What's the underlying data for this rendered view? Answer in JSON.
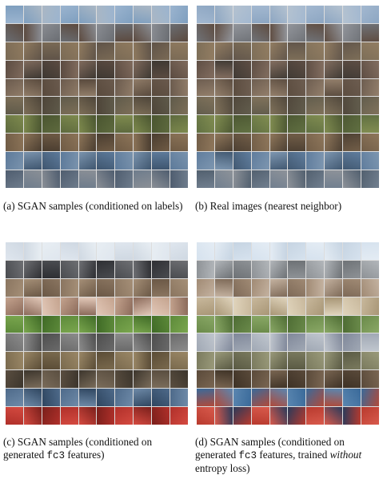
{
  "figure": {
    "panels": [
      {
        "id": "a",
        "caption_parts": [
          "(a) SGAN samples (conditioned on labels)"
        ],
        "row_colors": [
          [
            "#9bb4cf",
            "#7f9fbf",
            "#aab7c4"
          ],
          [
            "#6a6d72",
            "#5c4a3f",
            "#8a8d93"
          ],
          [
            "#7a6a55",
            "#8f7a5f",
            "#5f5348"
          ],
          [
            "#5b4b41",
            "#806b5d",
            "#3e3832"
          ],
          [
            "#6a5a4d",
            "#907c68",
            "#594a3d"
          ],
          [
            "#5f5a4a",
            "#7d6f58",
            "#4e4539"
          ],
          [
            "#5e6a3e",
            "#7e8a4e",
            "#4a5530"
          ],
          [
            "#6f5b45",
            "#8c7458",
            "#4a3d30"
          ],
          [
            "#5d7a9a",
            "#7a93ad",
            "#3f566f"
          ],
          [
            "#4f5d6f",
            "#6e7c8c",
            "#8a8f96"
          ]
        ]
      },
      {
        "id": "b",
        "caption_parts": [
          "(b) Real images (nearest neighbor)"
        ],
        "row_colors": [
          [
            "#a3b8d0",
            "#8da6c2",
            "#b4c2d0"
          ],
          [
            "#707378",
            "#5f4d42",
            "#92959b"
          ],
          [
            "#7d6e58",
            "#927d62",
            "#62564b"
          ],
          [
            "#5e4e44",
            "#836e60",
            "#413b35"
          ],
          [
            "#6d5d50",
            "#937f6b",
            "#5c4d40"
          ],
          [
            "#625d4d",
            "#80725b",
            "#51483c"
          ],
          [
            "#617042",
            "#818d51",
            "#4d5833"
          ],
          [
            "#725e48",
            "#8f775b",
            "#4d4033"
          ],
          [
            "#607d9d",
            "#7d96b0",
            "#425972"
          ],
          [
            "#52606f",
            "#717f8f",
            "#8d9299"
          ]
        ]
      },
      {
        "id": "c",
        "caption_parts": [
          "(c) SGAN samples (conditioned on generated ",
          "fc3",
          " features)"
        ],
        "row_colors": [
          [
            "#dfe6ee",
            "#cfd8e2",
            "#e8eef3"
          ],
          [
            "#4a4c50",
            "#6e6f73",
            "#2e2f33"
          ],
          [
            "#8a7560",
            "#a58f77",
            "#6b5846"
          ],
          [
            "#c4a38e",
            "#8b6a5a",
            "#e2c8b8"
          ],
          [
            "#5d8a3a",
            "#7aa64e",
            "#3f6a26"
          ],
          [
            "#6a6a6a",
            "#8c8c8c",
            "#4e4e4e"
          ],
          [
            "#7a6a4e",
            "#9a8766",
            "#5a4c36"
          ],
          [
            "#5a4e40",
            "#3c352c",
            "#7a6c5a"
          ],
          [
            "#4e6a8a",
            "#6e8aa8",
            "#2f4660"
          ],
          [
            "#b0302a",
            "#d44a40",
            "#7a1f1b"
          ]
        ]
      },
      {
        "id": "d",
        "caption_parts": [
          "(d) SGAN samples (conditioned on generated ",
          "fc3",
          " features, trained ",
          "without",
          " entropy loss)"
        ],
        "row_colors": [
          [
            "#d6e2ee",
            "#e4ecf4",
            "#c6d4e2"
          ],
          [
            "#8e9296",
            "#b2b6ba",
            "#6e7276"
          ],
          [
            "#a08a74",
            "#c4b2a0",
            "#7e6a58"
          ],
          [
            "#c8b89c",
            "#a89676",
            "#e0d4bc"
          ],
          [
            "#6a8a4a",
            "#8aa866",
            "#4e6c34"
          ],
          [
            "#a0a8b4",
            "#c0c6ce",
            "#80889a"
          ],
          [
            "#7a7a5e",
            "#9a9a7a",
            "#5a5a44"
          ],
          [
            "#5a4a3a",
            "#7a6652",
            "#3e3226"
          ],
          [
            "#3a6a9a",
            "#b04a3a",
            "#5a86b0"
          ],
          [
            "#b83a2e",
            "#d85a4c",
            "#2a3a5a"
          ]
        ]
      }
    ]
  }
}
